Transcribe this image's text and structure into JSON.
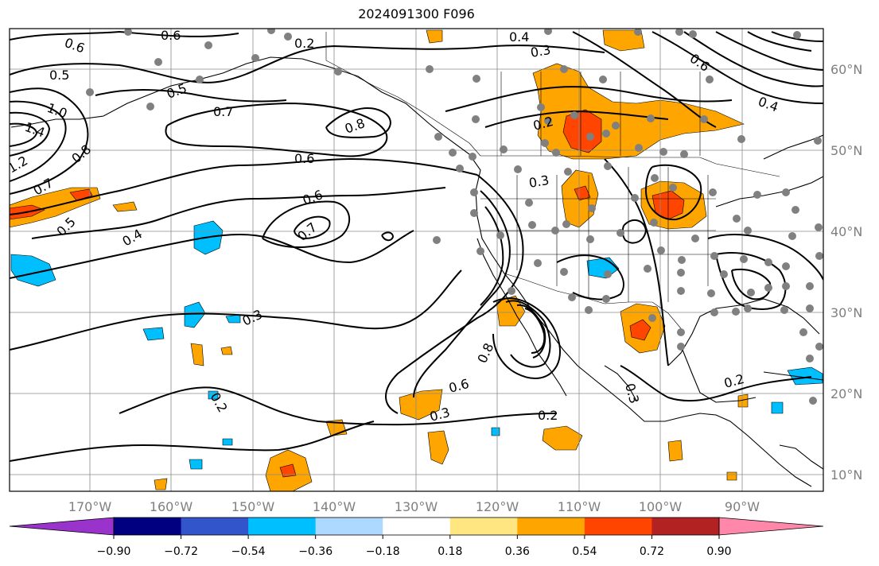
{
  "title": "2024091300 F096",
  "map": {
    "lon_range": [
      -180,
      -80
    ],
    "lat_range": [
      8,
      65
    ],
    "lon_ticks": [
      "170°W",
      "160°W",
      "150°W",
      "140°W",
      "130°W",
      "120°W",
      "110°W",
      "100°W",
      "90°W"
    ],
    "lat_ticks": [
      "60°N",
      "50°N",
      "40°N",
      "30°N",
      "20°N",
      "10°N"
    ],
    "gridlines": true,
    "contour_labels": [
      "0.6",
      "0.6",
      "0.2",
      "0.4",
      "0.3",
      "0.6",
      "0.4",
      "0.5",
      "0.5",
      "1.0",
      "1.4",
      "0.8",
      "1.2",
      "0.7",
      "0.7",
      "0.8",
      "0.6",
      "0.6",
      "0.7",
      "0.4",
      "0.5",
      "0.3",
      "0.2",
      "0.2",
      "0.3",
      "0.8",
      "0.6",
      "0.3",
      "0.2",
      "0.3",
      "0.2"
    ],
    "colors": {
      "positive_1": "#ffa500",
      "positive_2": "#ff4500",
      "negative_1": "#00bfff",
      "station_dots": "#808080",
      "coast": "#000000"
    }
  },
  "colorbar": {
    "tick_labels": [
      "−0.90",
      "−0.72",
      "−0.54",
      "−0.36",
      "−0.18",
      "0.18",
      "0.36",
      "0.54",
      "0.72",
      "0.90"
    ],
    "bins": [
      "#9933cc",
      "#000080",
      "#3355cc",
      "#00bfff",
      "#add8ff",
      "#ffffff",
      "#ffe680",
      "#ffa500",
      "#ff4500",
      "#b22222",
      "#ff88aa"
    ]
  }
}
